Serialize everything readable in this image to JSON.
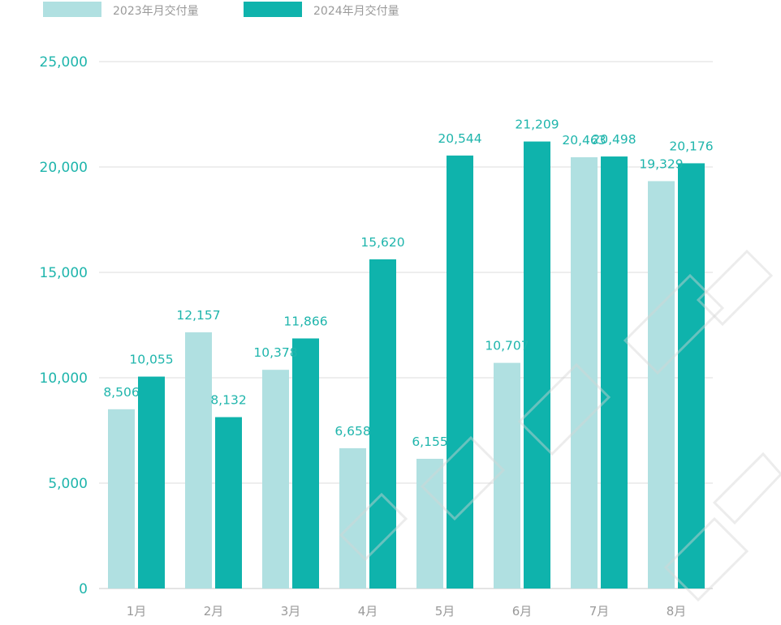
{
  "colors": {
    "series_2023": "#b0e0e1",
    "series_2024": "#0fb3ac",
    "axis_text": "#1fb5ac",
    "category_text": "#9a9a9a",
    "grid": "#dddddd"
  },
  "chart_data": {
    "type": "bar",
    "title": "",
    "xlabel": "",
    "ylabel": "",
    "categories": [
      "1月",
      "2月",
      "3月",
      "4月",
      "5月",
      "6月",
      "7月",
      "8月"
    ],
    "series": [
      {
        "name": "2023年月交付量",
        "values": [
          8506,
          12157,
          10378,
          6658,
          6155,
          10707,
          20463,
          19329
        ],
        "labels": [
          "8,506",
          "12,157",
          "10,378",
          "6,658",
          "6,155",
          "10,707",
          "20,463",
          "19,329"
        ]
      },
      {
        "name": "2024年月交付量",
        "values": [
          10055,
          8132,
          11866,
          15620,
          20544,
          21209,
          20498,
          20176
        ],
        "labels": [
          "10,055",
          "8,132",
          "11,866",
          "15,620",
          "20,544",
          "21,209",
          "20,498",
          "20,176"
        ]
      }
    ],
    "ylim": [
      0,
      25000
    ],
    "yticks": [
      0,
      5000,
      10000,
      15000,
      20000,
      25000
    ],
    "ytick_labels": [
      "0",
      "5,000",
      "10,000",
      "15,000",
      "20,000",
      "25,000"
    ],
    "grid": true,
    "legend": "top-left"
  }
}
